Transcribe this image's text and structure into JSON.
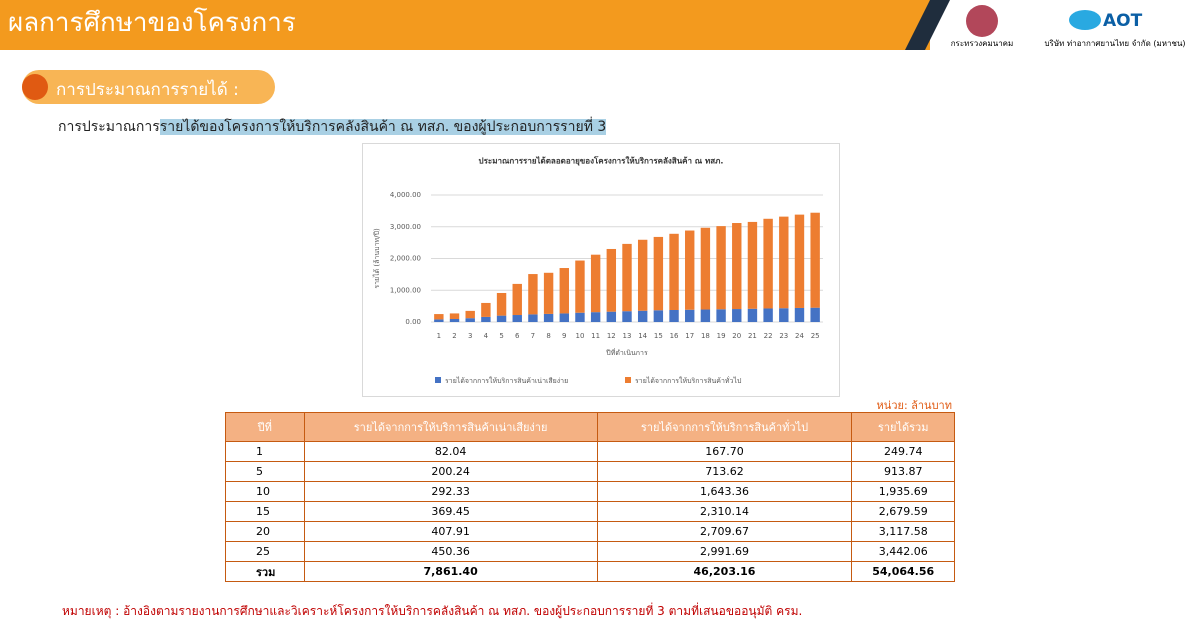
{
  "header": {
    "title": "ผลการศึกษาของโครงการ",
    "ministry": "กระทรวงคมนาคม",
    "logo": "AOT",
    "company": "บริษัท ท่าอากาศยานไทย จำกัด (มหาชน)"
  },
  "section": {
    "title": "การประมาณการรายได้ :",
    "subtitle_plain": "การประมาณการ",
    "subtitle_highlight": "รายได้ของโครงการให้บริการคลังสินค้า ณ ทสภ. ของผู้ประกอบการรายที่ 3"
  },
  "chart_data": {
    "type": "stacked-bar",
    "title": "ประมาณการรายได้ตลอดอายุของโครงการให้บริการคลังสินค้า ณ ทสภ.",
    "y_label": "รายได้ (ล้านบาท/ปี)",
    "x_label": "ปีที่ดำเนินการ",
    "categories": [
      "1",
      "2",
      "3",
      "4",
      "5",
      "6",
      "7",
      "8",
      "9",
      "10",
      "11",
      "12",
      "13",
      "14",
      "15",
      "16",
      "17",
      "18",
      "19",
      "20",
      "21",
      "22",
      "23",
      "24",
      "25"
    ],
    "series": [
      {
        "name": "รายได้จากการให้บริการสินค้าเน่าเสียง่าย",
        "color": "#4472c4",
        "values": [
          82.04,
          95,
          120,
          160,
          200.24,
          220,
          240,
          255,
          270,
          292.33,
          310,
          325,
          340,
          355,
          369.45,
          378,
          386,
          393,
          400,
          407.91,
          417,
          426,
          434,
          442,
          450.36
        ]
      },
      {
        "name": "รายได้จากการให้บริการสินค้าทั่วไป",
        "color": "#ed7d31",
        "values": [
          167.7,
          175,
          230,
          440,
          713.62,
          980,
          1270,
          1295,
          1430,
          1643.36,
          1810,
          1975,
          2120,
          2235,
          2310.14,
          2400,
          2495,
          2575,
          2620,
          2709.67,
          2735,
          2825,
          2885,
          2940,
          2991.69
        ]
      }
    ],
    "ylim": [
      0,
      4000
    ],
    "yticks": [
      {
        "value": 0,
        "label": "0.00"
      },
      {
        "value": 1000,
        "label": "1,000.00"
      },
      {
        "value": 2000,
        "label": "2,000.00"
      },
      {
        "value": 3000,
        "label": "3,000.00"
      },
      {
        "value": 4000,
        "label": "4,000.00"
      }
    ],
    "grid": true,
    "legend": "bottom"
  },
  "table": {
    "unit": "หน่วย: ล้านบาท",
    "columns": [
      "ปีที่",
      "รายได้จากการให้บริการสินค้าเน่าเสียง่าย",
      "รายได้จากการให้บริการสินค้าทั่วไป",
      "รายได้รวม"
    ],
    "rows": [
      [
        "1",
        "82.04",
        "167.70",
        "249.74"
      ],
      [
        "5",
        "200.24",
        "713.62",
        "913.87"
      ],
      [
        "10",
        "292.33",
        "1,643.36",
        "1,935.69"
      ],
      [
        "15",
        "369.45",
        "2,310.14",
        "2,679.59"
      ],
      [
        "20",
        "407.91",
        "2,709.67",
        "3,117.58"
      ],
      [
        "25",
        "450.36",
        "2,991.69",
        "3,442.06"
      ],
      [
        "รวม",
        "7,861.40",
        "46,203.16",
        "54,064.56"
      ]
    ]
  },
  "note": "หมายเหตุ : อ้างอิงตามรายงานการศึกษาและวิเคราะห์โครงการให้บริการคลังสินค้า ณ ทสภ. ของผู้ประกอบการรายที่ 3 ตามที่เสนอขออนุมัติ ครม."
}
